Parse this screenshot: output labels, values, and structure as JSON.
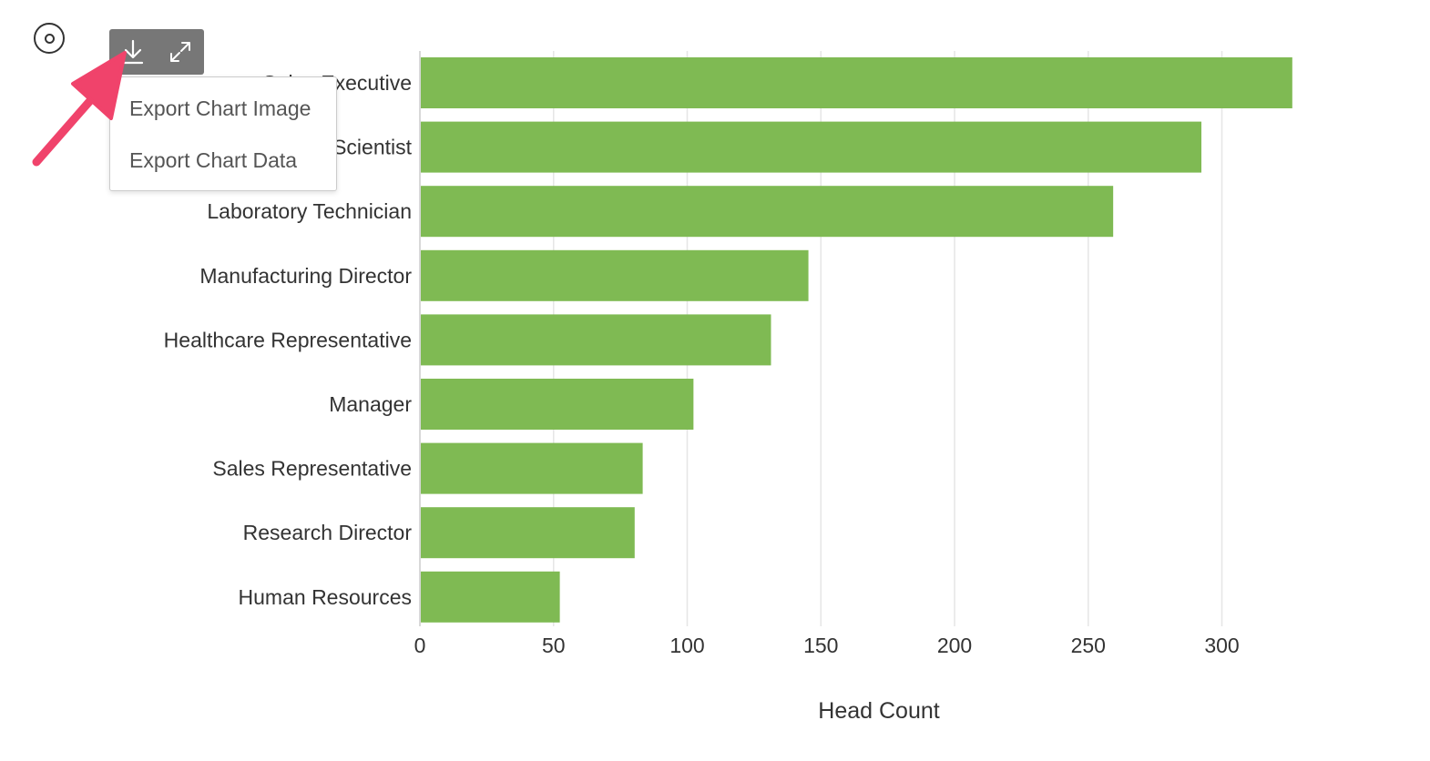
{
  "menu": {
    "export_image": "Export Chart Image",
    "export_data": "Export Chart Data"
  },
  "colors": {
    "bar": "#7fba53",
    "annotation_arrow": "#f0436b"
  },
  "icons": {
    "settings": "settings-circle-icon",
    "download": "download-icon",
    "expand": "expand-icon"
  },
  "chart_data": {
    "type": "bar",
    "orientation": "horizontal",
    "categories": [
      "Sales Executive",
      "Research Scientist",
      "Laboratory Technician",
      "Manufacturing Director",
      "Healthcare Representative",
      "Manager",
      "Sales Representative",
      "Research Director",
      "Human Resources"
    ],
    "values": [
      326,
      292,
      259,
      145,
      131,
      102,
      83,
      80,
      52
    ],
    "xlabel": "Head Count",
    "ylabel": "",
    "xlim": [
      0,
      350
    ],
    "xticks": [
      0,
      50,
      100,
      150,
      200,
      250,
      300
    ],
    "grid": true
  }
}
